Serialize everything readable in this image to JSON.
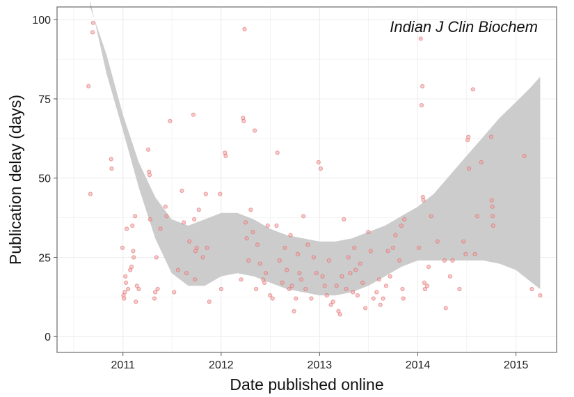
{
  "chart_data": {
    "type": "scatter",
    "title": "",
    "annotation": "Indian J Clin Biochem",
    "xlabel": "Date published online",
    "ylabel": "Publication delay (days)",
    "x_scale": "date",
    "xlim": [
      "2010-05-01",
      "2015-06-01"
    ],
    "ylim": [
      -5,
      104
    ],
    "x_ticks": [
      "2011",
      "2012",
      "2013",
      "2014",
      "2015"
    ],
    "x_tick_dates": [
      "2011-01-01",
      "2012-01-01",
      "2013-01-01",
      "2014-01-01",
      "2015-01-01"
    ],
    "y_ticks": [
      0,
      25,
      50,
      75,
      100
    ],
    "grid": true,
    "colors": {
      "points_fill": "#f1a3a3",
      "points_stroke": "#e06565",
      "band": "#cccccc",
      "panel_border": "#7f7f7f",
      "grid": "#ececec"
    },
    "smooth_band": {
      "x": [
        "2010-09-01",
        "2010-11-01",
        "2011-01-01",
        "2011-03-01",
        "2011-05-01",
        "2011-07-01",
        "2011-09-01",
        "2011-11-01",
        "2012-01-01",
        "2012-03-01",
        "2012-05-01",
        "2012-07-01",
        "2012-09-01",
        "2012-11-01",
        "2013-01-01",
        "2013-03-01",
        "2013-05-01",
        "2013-07-01",
        "2013-09-01",
        "2013-11-01",
        "2014-01-01",
        "2014-03-01",
        "2014-05-01",
        "2014-07-01",
        "2014-09-01",
        "2014-11-01",
        "2015-01-01",
        "2015-03-01",
        "2015-04-01"
      ],
      "upper": [
        106,
        89,
        70,
        55,
        44,
        37,
        35,
        37,
        39,
        39,
        37,
        34,
        32,
        31,
        30,
        30,
        31,
        33,
        35,
        38,
        41,
        45,
        51,
        57,
        63,
        69,
        74,
        79,
        82
      ],
      "lower": [
        106,
        83,
        65,
        47,
        31,
        20,
        16,
        16,
        19,
        20,
        19,
        17,
        15,
        14,
        13,
        13,
        14,
        16,
        19,
        22,
        24,
        24,
        24,
        24,
        24,
        23,
        21,
        17,
        15
      ]
    },
    "points": [
      {
        "x": "2010-08-26",
        "y": 79
      },
      {
        "x": "2010-09-02",
        "y": 45
      },
      {
        "x": "2010-09-10",
        "y": 96
      },
      {
        "x": "2010-09-12",
        "y": 99
      },
      {
        "x": "2010-11-18",
        "y": 56
      },
      {
        "x": "2010-11-20",
        "y": 53
      },
      {
        "x": "2010-12-30",
        "y": 28
      },
      {
        "x": "2011-01-03",
        "y": 13
      },
      {
        "x": "2011-01-05",
        "y": 12
      },
      {
        "x": "2011-01-08",
        "y": 14
      },
      {
        "x": "2011-01-10",
        "y": 19
      },
      {
        "x": "2011-01-12",
        "y": 17
      },
      {
        "x": "2011-01-15",
        "y": 34
      },
      {
        "x": "2011-01-20",
        "y": 15
      },
      {
        "x": "2011-01-28",
        "y": 21
      },
      {
        "x": "2011-02-02",
        "y": 22
      },
      {
        "x": "2011-02-05",
        "y": 35
      },
      {
        "x": "2011-02-08",
        "y": 27
      },
      {
        "x": "2011-02-10",
        "y": 25
      },
      {
        "x": "2011-02-15",
        "y": 38
      },
      {
        "x": "2011-02-18",
        "y": 11
      },
      {
        "x": "2011-02-22",
        "y": 16
      },
      {
        "x": "2011-03-01",
        "y": 15
      },
      {
        "x": "2011-04-05",
        "y": 59
      },
      {
        "x": "2011-04-08",
        "y": 52
      },
      {
        "x": "2011-04-10",
        "y": 51
      },
      {
        "x": "2011-04-12",
        "y": 37
      },
      {
        "x": "2011-04-28",
        "y": 12
      },
      {
        "x": "2011-05-01",
        "y": 14
      },
      {
        "x": "2011-05-05",
        "y": 25
      },
      {
        "x": "2011-05-10",
        "y": 15
      },
      {
        "x": "2011-05-20",
        "y": 34
      },
      {
        "x": "2011-06-08",
        "y": 41
      },
      {
        "x": "2011-06-12",
        "y": 38
      },
      {
        "x": "2011-06-25",
        "y": 68
      },
      {
        "x": "2011-07-10",
        "y": 14
      },
      {
        "x": "2011-07-25",
        "y": 21
      },
      {
        "x": "2011-08-08",
        "y": 46
      },
      {
        "x": "2011-08-15",
        "y": 36
      },
      {
        "x": "2011-08-25",
        "y": 20
      },
      {
        "x": "2011-09-05",
        "y": 30
      },
      {
        "x": "2011-09-20",
        "y": 70
      },
      {
        "x": "2011-09-23",
        "y": 37
      },
      {
        "x": "2011-09-25",
        "y": 18
      },
      {
        "x": "2011-09-28",
        "y": 27
      },
      {
        "x": "2011-10-02",
        "y": 28
      },
      {
        "x": "2011-10-10",
        "y": 40
      },
      {
        "x": "2011-10-25",
        "y": 25
      },
      {
        "x": "2011-11-05",
        "y": 45
      },
      {
        "x": "2011-11-10",
        "y": 28
      },
      {
        "x": "2011-11-18",
        "y": 11
      },
      {
        "x": "2011-12-28",
        "y": 45
      },
      {
        "x": "2012-01-01",
        "y": 15
      },
      {
        "x": "2012-01-15",
        "y": 58
      },
      {
        "x": "2012-01-18",
        "y": 57
      },
      {
        "x": "2012-03-15",
        "y": 18
      },
      {
        "x": "2012-03-22",
        "y": 69
      },
      {
        "x": "2012-03-25",
        "y": 68
      },
      {
        "x": "2012-03-28",
        "y": 97
      },
      {
        "x": "2012-04-01",
        "y": 36
      },
      {
        "x": "2012-04-05",
        "y": 31
      },
      {
        "x": "2012-04-12",
        "y": 24
      },
      {
        "x": "2012-04-20",
        "y": 40
      },
      {
        "x": "2012-04-28",
        "y": 33
      },
      {
        "x": "2012-05-05",
        "y": 65
      },
      {
        "x": "2012-05-10",
        "y": 15
      },
      {
        "x": "2012-05-15",
        "y": 29
      },
      {
        "x": "2012-05-25",
        "y": 23
      },
      {
        "x": "2012-06-05",
        "y": 18
      },
      {
        "x": "2012-06-10",
        "y": 17
      },
      {
        "x": "2012-06-15",
        "y": 20
      },
      {
        "x": "2012-06-22",
        "y": 35
      },
      {
        "x": "2012-07-01",
        "y": 13
      },
      {
        "x": "2012-07-10",
        "y": 12
      },
      {
        "x": "2012-07-25",
        "y": 35
      },
      {
        "x": "2012-07-28",
        "y": 58
      },
      {
        "x": "2012-08-05",
        "y": 24
      },
      {
        "x": "2012-08-15",
        "y": 17
      },
      {
        "x": "2012-08-25",
        "y": 28
      },
      {
        "x": "2012-09-01",
        "y": 21
      },
      {
        "x": "2012-09-10",
        "y": 15
      },
      {
        "x": "2012-09-15",
        "y": 32
      },
      {
        "x": "2012-09-20",
        "y": 16
      },
      {
        "x": "2012-09-28",
        "y": 8
      },
      {
        "x": "2012-10-05",
        "y": 12
      },
      {
        "x": "2012-10-12",
        "y": 26
      },
      {
        "x": "2012-10-18",
        "y": 20
      },
      {
        "x": "2012-10-25",
        "y": 18
      },
      {
        "x": "2012-11-02",
        "y": 38
      },
      {
        "x": "2012-11-10",
        "y": 15
      },
      {
        "x": "2012-11-18",
        "y": 29
      },
      {
        "x": "2012-12-01",
        "y": 12
      },
      {
        "x": "2012-12-10",
        "y": 25
      },
      {
        "x": "2012-12-20",
        "y": 20
      },
      {
        "x": "2012-12-28",
        "y": 55
      },
      {
        "x": "2013-01-05",
        "y": 53
      },
      {
        "x": "2013-01-12",
        "y": 19
      },
      {
        "x": "2013-01-20",
        "y": 16
      },
      {
        "x": "2013-01-28",
        "y": 13
      },
      {
        "x": "2013-02-05",
        "y": 24
      },
      {
        "x": "2013-02-12",
        "y": 10
      },
      {
        "x": "2013-02-20",
        "y": 11
      },
      {
        "x": "2013-03-05",
        "y": 16
      },
      {
        "x": "2013-03-12",
        "y": 8
      },
      {
        "x": "2013-03-18",
        "y": 7
      },
      {
        "x": "2013-03-25",
        "y": 19
      },
      {
        "x": "2013-04-01",
        "y": 37
      },
      {
        "x": "2013-04-10",
        "y": 15
      },
      {
        "x": "2013-04-18",
        "y": 25
      },
      {
        "x": "2013-04-25",
        "y": 20
      },
      {
        "x": "2013-05-05",
        "y": 14
      },
      {
        "x": "2013-05-10",
        "y": 28
      },
      {
        "x": "2013-05-15",
        "y": 21
      },
      {
        "x": "2013-05-22",
        "y": 13
      },
      {
        "x": "2013-06-01",
        "y": 23
      },
      {
        "x": "2013-06-10",
        "y": 17
      },
      {
        "x": "2013-06-20",
        "y": 9
      },
      {
        "x": "2013-07-01",
        "y": 33
      },
      {
        "x": "2013-07-10",
        "y": 27
      },
      {
        "x": "2013-07-20",
        "y": 12
      },
      {
        "x": "2013-08-01",
        "y": 14
      },
      {
        "x": "2013-08-10",
        "y": 18
      },
      {
        "x": "2013-08-15",
        "y": 10
      },
      {
        "x": "2013-08-25",
        "y": 12
      },
      {
        "x": "2013-09-05",
        "y": 16
      },
      {
        "x": "2013-09-12",
        "y": 27
      },
      {
        "x": "2013-09-20",
        "y": 19
      },
      {
        "x": "2013-10-01",
        "y": 28
      },
      {
        "x": "2013-10-10",
        "y": 32
      },
      {
        "x": "2013-10-25",
        "y": 24
      },
      {
        "x": "2013-11-01",
        "y": 35
      },
      {
        "x": "2013-11-05",
        "y": 15
      },
      {
        "x": "2013-11-08",
        "y": 12
      },
      {
        "x": "2013-11-12",
        "y": 37
      },
      {
        "x": "2014-01-05",
        "y": 28
      },
      {
        "x": "2014-01-12",
        "y": 94
      },
      {
        "x": "2014-01-15",
        "y": 73
      },
      {
        "x": "2014-01-18",
        "y": 79
      },
      {
        "x": "2014-01-20",
        "y": 44
      },
      {
        "x": "2014-01-22",
        "y": 43
      },
      {
        "x": "2014-01-25",
        "y": 17
      },
      {
        "x": "2014-01-28",
        "y": 15
      },
      {
        "x": "2014-02-05",
        "y": 16
      },
      {
        "x": "2014-02-10",
        "y": 22
      },
      {
        "x": "2014-02-20",
        "y": 38
      },
      {
        "x": "2014-03-15",
        "y": 30
      },
      {
        "x": "2014-04-10",
        "y": 24
      },
      {
        "x": "2014-04-15",
        "y": 9
      },
      {
        "x": "2014-05-01",
        "y": 19
      },
      {
        "x": "2014-05-10",
        "y": 24
      },
      {
        "x": "2014-06-05",
        "y": 15
      },
      {
        "x": "2014-06-20",
        "y": 30
      },
      {
        "x": "2014-06-28",
        "y": 26
      },
      {
        "x": "2014-07-05",
        "y": 62
      },
      {
        "x": "2014-07-08",
        "y": 63
      },
      {
        "x": "2014-07-10",
        "y": 53
      },
      {
        "x": "2014-07-25",
        "y": 78
      },
      {
        "x": "2014-08-01",
        "y": 26
      },
      {
        "x": "2014-08-10",
        "y": 38
      },
      {
        "x": "2014-08-25",
        "y": 55
      },
      {
        "x": "2014-10-01",
        "y": 63
      },
      {
        "x": "2014-10-03",
        "y": 43
      },
      {
        "x": "2014-10-05",
        "y": 41
      },
      {
        "x": "2014-10-06",
        "y": 38
      },
      {
        "x": "2014-10-08",
        "y": 35
      },
      {
        "x": "2015-02-01",
        "y": 57
      },
      {
        "x": "2015-03-01",
        "y": 15
      },
      {
        "x": "2015-04-01",
        "y": 13
      }
    ]
  }
}
